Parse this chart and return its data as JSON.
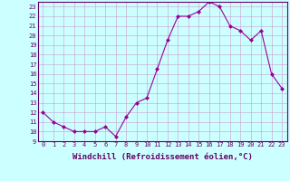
{
  "x": [
    0,
    1,
    2,
    3,
    4,
    5,
    6,
    7,
    8,
    9,
    10,
    11,
    12,
    13,
    14,
    15,
    16,
    17,
    18,
    19,
    20,
    21,
    22,
    23
  ],
  "y": [
    12,
    11,
    10.5,
    10,
    10,
    10,
    10.5,
    9.5,
    11.5,
    13,
    13.5,
    16.5,
    19.5,
    22,
    22,
    22.5,
    23.5,
    23,
    21,
    20.5,
    19.5,
    20.5,
    16,
    14.5
  ],
  "line_color": "#990099",
  "marker": "D",
  "marker_size": 2.0,
  "bg_color": "#ccffff",
  "grid_color": "#cc99cc",
  "xlabel": "Windchill (Refroidissement éolien,°C)",
  "ylim": [
    9,
    23.5
  ],
  "xlim": [
    -0.5,
    23.5
  ],
  "yticks": [
    9,
    10,
    11,
    12,
    13,
    14,
    15,
    16,
    17,
    18,
    19,
    20,
    21,
    22,
    23
  ],
  "xticks": [
    0,
    1,
    2,
    3,
    4,
    5,
    6,
    7,
    8,
    9,
    10,
    11,
    12,
    13,
    14,
    15,
    16,
    17,
    18,
    19,
    20,
    21,
    22,
    23
  ],
  "tick_fontsize": 5.0,
  "xlabel_fontsize": 6.5,
  "tick_color": "#660066",
  "spine_color": "#660066"
}
